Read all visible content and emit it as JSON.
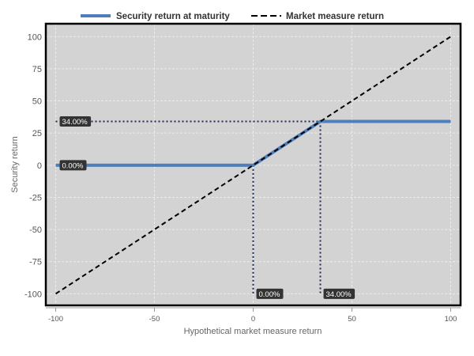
{
  "chart_data": {
    "type": "line",
    "title": "",
    "xlabel": "Hypothetical market measure return",
    "ylabel": "Security return",
    "xlim": [
      -105,
      105
    ],
    "ylim": [
      -109,
      110
    ],
    "x_ticks": [
      -100,
      -50,
      0,
      50,
      100
    ],
    "y_ticks": [
      -100,
      -75,
      -50,
      -25,
      0,
      25,
      50,
      75,
      100
    ],
    "grid": true,
    "legend_position": "top",
    "series": [
      {
        "name": "Security return at maturity",
        "style": "solid",
        "color": "#4f7fba",
        "x": [
          -100,
          0,
          34,
          100
        ],
        "y": [
          0,
          0,
          34,
          34
        ]
      },
      {
        "name": "Market measure return",
        "style": "dashed",
        "color": "#000000",
        "x": [
          -100,
          100
        ],
        "y": [
          -100,
          100
        ]
      }
    ],
    "reference_lines": [
      {
        "kind": "horizontal",
        "value": 34,
        "from_x": -100,
        "to_x": 34,
        "label": "34.00%"
      },
      {
        "kind": "horizontal",
        "value": 0,
        "from_x": -100,
        "to_x": 0,
        "label": "0.00%"
      },
      {
        "kind": "vertical",
        "value": 0,
        "from_y": 0,
        "to_y": -100,
        "label": "0.00%"
      },
      {
        "kind": "vertical",
        "value": 34,
        "from_y": 34,
        "to_y": -100,
        "label": "34.00%"
      }
    ],
    "colors": {
      "plot_background": "#d3d3d3",
      "grid": "#ececec",
      "reference_line": "#1f2a55",
      "label_box": "#333333"
    }
  }
}
